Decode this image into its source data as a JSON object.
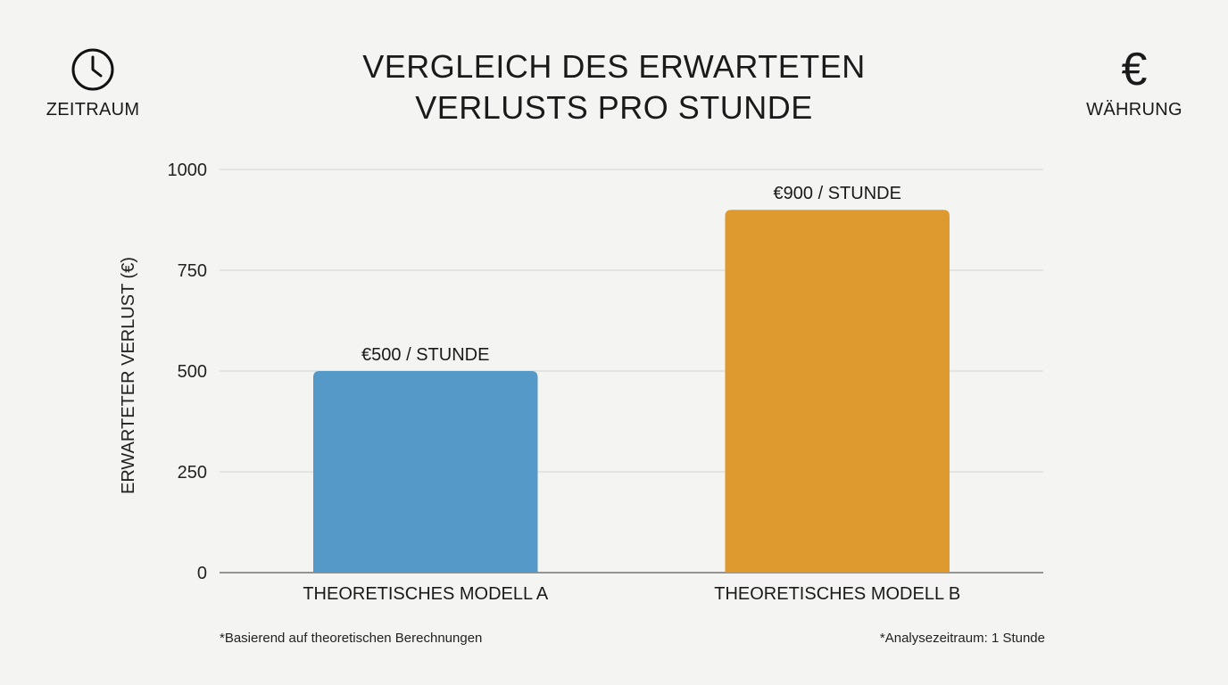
{
  "header": {
    "title_line1": "VERGLEICH DES ERWARTETEN",
    "title_line2": "VERLUSTS PRO STUNDE",
    "left_label": "ZEITRAUM",
    "left_icon": "clock-icon",
    "right_label": "WÄHRUNG",
    "right_icon": "euro-icon",
    "right_glyph": "€"
  },
  "chart_data": {
    "type": "bar",
    "categories": [
      "THEORETISCHES MODELL A",
      "THEORETISCHES MODELL B"
    ],
    "values": [
      500,
      900
    ],
    "data_labels": [
      "€500 / STUNDE",
      "€900 / STUNDE"
    ],
    "colors": [
      "#5499c7",
      "#df9a2f"
    ],
    "ylabel": "ERWARTETER VERLUST (€)",
    "ylim": [
      0,
      1000
    ],
    "yticks": [
      0,
      250,
      500,
      750,
      1000
    ],
    "grid": true
  },
  "footnotes": {
    "left": "*Basierend auf theoretischen Berechnungen",
    "right": "*Analysezeitraum: 1 Stunde"
  }
}
